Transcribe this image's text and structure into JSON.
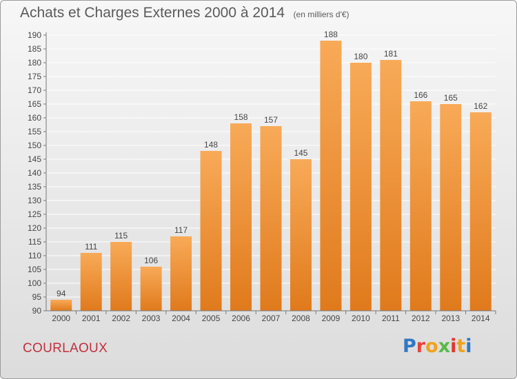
{
  "header": {
    "title": "Achats et Charges Externes 2000 à 2014",
    "unit": "(en milliers d'€)"
  },
  "footer": {
    "city": "COURLAOUX",
    "logo_text": "Proxiti",
    "logo_colors": [
      "#2f78c4",
      "#e8443a",
      "#f2a21c",
      "#58b947",
      "#e2342f",
      "#f2a21c",
      "#2f78c4"
    ]
  },
  "colors": {
    "bar_light": "#f8aa58",
    "bar_dark": "#e07a1c",
    "axis_text": "#444444",
    "grid": "#ffffff"
  },
  "chart_data": {
    "type": "bar",
    "title": "Achats et Charges Externes 2000 à 2014",
    "categories": [
      "2000",
      "2001",
      "2002",
      "2003",
      "2004",
      "2005",
      "2006",
      "2007",
      "2008",
      "2009",
      "2010",
      "2011",
      "2012",
      "2013",
      "2014"
    ],
    "values": [
      94,
      111,
      115,
      106,
      117,
      148,
      158,
      157,
      145,
      188,
      180,
      181,
      166,
      165,
      162
    ],
    "ylim": [
      90,
      190
    ],
    "ytick_step": 5,
    "grid": true,
    "data_labels": true
  }
}
